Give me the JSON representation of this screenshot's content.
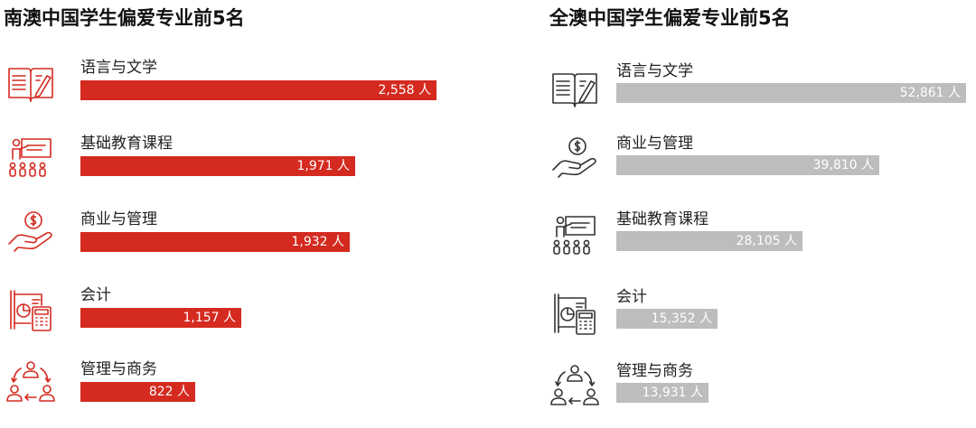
{
  "chart_data": [
    {
      "type": "bar",
      "title": "南澳中国学生偏爱专业前5名",
      "categories": [
        "语言与文学",
        "基础教育课程",
        "商业与管理",
        "会计",
        "管理与商务"
      ],
      "values": [
        2558,
        1971,
        1932,
        1157,
        822
      ],
      "value_labels": [
        "2,558 人",
        "1,971 人",
        "1,932 人",
        "1,157 人",
        "822 人"
      ],
      "icons": [
        "book-pen-icon",
        "teacher-board-icon",
        "hand-coin-icon",
        "accounting-calculator-icon",
        "people-cycle-icon"
      ],
      "color": "#d42a20",
      "xlim": [
        0,
        2558
      ]
    },
    {
      "type": "bar",
      "title": "全澳中国学生偏爱专业前5名",
      "categories": [
        "语言与文学",
        "商业与管理",
        "基础教育课程",
        "会计",
        "管理与商务"
      ],
      "values": [
        52861,
        39810,
        28105,
        15352,
        13931
      ],
      "value_labels": [
        "52,861 人",
        "39,810 人",
        "28,105 人",
        "15,352 人",
        "13,931 人"
      ],
      "icons": [
        "book-pen-icon",
        "hand-coin-icon",
        "teacher-board-icon",
        "accounting-calculator-icon",
        "people-cycle-icon"
      ],
      "color": "#bdbdbd",
      "xlim": [
        0,
        52861
      ]
    }
  ]
}
